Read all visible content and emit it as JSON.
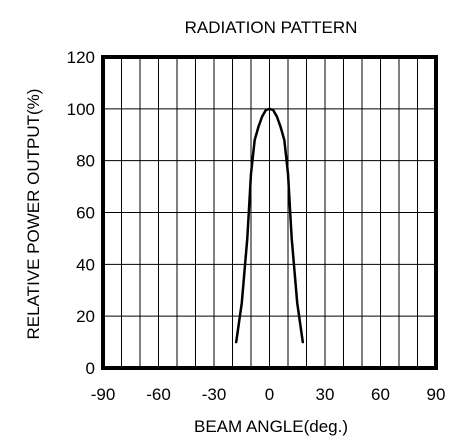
{
  "chart_data": {
    "type": "line",
    "title": "RADIATION PATTERN",
    "xlabel": "BEAM ANGLE(deg.)",
    "ylabel": "RELATIVE POWER OUTPUT(%)",
    "xlim": [
      -90,
      90
    ],
    "ylim": [
      0,
      120
    ],
    "xticks": [
      -90,
      -60,
      -30,
      0,
      30,
      60,
      90
    ],
    "yticks": [
      0,
      20,
      40,
      60,
      80,
      100,
      120
    ],
    "xtick_labels": [
      "-90",
      "-60",
      "-30",
      "0",
      "30",
      "60",
      "90"
    ],
    "ytick_labels": [
      "0",
      "20",
      "40",
      "60",
      "80",
      "100",
      "120"
    ],
    "grid": true,
    "x_grid_step": 10,
    "y_grid_step": 20,
    "series": [
      {
        "values": [
          {
            "x": -18,
            "y": 10
          },
          {
            "x": -15,
            "y": 25
          },
          {
            "x": -12,
            "y": 50
          },
          {
            "x": -10,
            "y": 75
          },
          {
            "x": -8,
            "y": 88
          },
          {
            "x": -6,
            "y": 93
          },
          {
            "x": -4,
            "y": 97
          },
          {
            "x": -2,
            "y": 99.5
          },
          {
            "x": 0,
            "y": 100
          },
          {
            "x": 2,
            "y": 99.5
          },
          {
            "x": 4,
            "y": 97
          },
          {
            "x": 6,
            "y": 93
          },
          {
            "x": 8,
            "y": 88
          },
          {
            "x": 10,
            "y": 75
          },
          {
            "x": 12,
            "y": 50
          },
          {
            "x": 15,
            "y": 25
          },
          {
            "x": 18,
            "y": 10
          }
        ]
      }
    ]
  }
}
